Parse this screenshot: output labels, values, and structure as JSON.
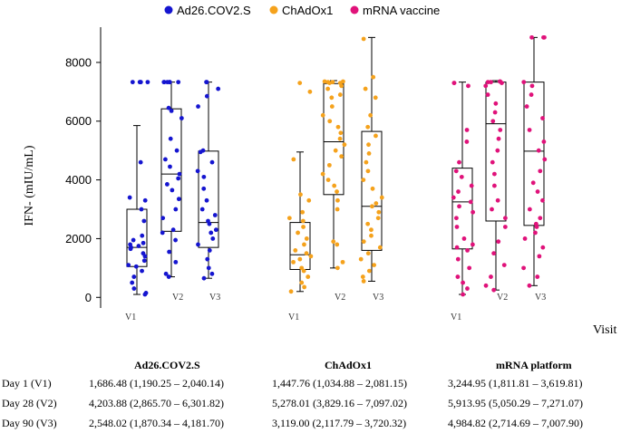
{
  "chart_data": {
    "type": "box-strip",
    "ylabel": "IFN-  (mIU/mL)",
    "xlabel": "Visit",
    "ylim": [
      -300,
      9200
    ],
    "yticks": [
      0,
      2000,
      4000,
      6000,
      8000
    ],
    "ytick_labels": [
      "0",
      "2000",
      "4000",
      "6000",
      "8000"
    ],
    "legend": [
      {
        "name": "Ad26.COV2.S",
        "color": "#1515d0"
      },
      {
        "name": "ChAdOx1",
        "color": "#f5a21c"
      },
      {
        "name": "mRNA vaccine",
        "color": "#e0127a"
      }
    ],
    "groups": [
      {
        "name": "Ad26.COV2.S",
        "color": "#1515d0",
        "boxes": [
          {
            "visit": "V1",
            "min": 100,
            "q1": 1050,
            "median": 1700,
            "q3": 3000,
            "max": 5850,
            "points": [
              7330,
              7330,
              7330,
              7330,
              7330,
              4600,
              3400,
              3300,
              3000,
              2600,
              2100,
              1950,
              1850,
              1800,
              1750,
              1700,
              1650,
              1500,
              1400,
              1250,
              1100,
              1050,
              900,
              700,
              500,
              300,
              150,
              100
            ]
          },
          {
            "visit": "V2",
            "min": 700,
            "q1": 2250,
            "median": 4200,
            "q3": 6420,
            "max": 7330,
            "points": [
              7330,
              7330,
              7330,
              7330,
              7330,
              7330,
              6450,
              6350,
              6100,
              5400,
              5000,
              4700,
              4450,
              4200,
              4050,
              3850,
              3650,
              3350,
              3000,
              2700,
              2300,
              2200,
              1950,
              1550,
              1200,
              800,
              700
            ]
          },
          {
            "visit": "V3",
            "min": 650,
            "q1": 1700,
            "median": 2550,
            "q3": 4980,
            "max": 7330,
            "points": [
              7330,
              7330,
              7100,
              6850,
              6500,
              5000,
              4950,
              4600,
              4300,
              4100,
              3700,
              3300,
              3000,
              2800,
              2600,
              2500,
              2300,
              2200,
              2000,
              1800,
              1600,
              1300,
              1000,
              800,
              650
            ]
          }
        ]
      },
      {
        "name": "ChAdOx1",
        "color": "#f5a21c",
        "boxes": [
          {
            "visit": "V1",
            "min": 200,
            "q1": 950,
            "median": 1450,
            "q3": 2550,
            "max": 4950,
            "points": [
              7300,
              7000,
              4700,
              3500,
              3300,
              2900,
              2700,
              2600,
              2400,
              2200,
              2000,
              1800,
              1600,
              1500,
              1400,
              1300,
              1200,
              1000,
              900,
              700,
              500,
              350,
              200
            ]
          },
          {
            "visit": "V2",
            "min": 1000,
            "q1": 3500,
            "median": 5300,
            "q3": 7280,
            "max": 7380,
            "points": [
              7350,
              7350,
              7330,
              7330,
              7300,
              7300,
              7200,
              7100,
              6900,
              6800,
              6500,
              6200,
              6000,
              5800,
              5600,
              5400,
              5200,
              5000,
              4800,
              4500,
              4200,
              4000,
              3800,
              3600,
              3300,
              3000,
              1900,
              1800,
              1200,
              1000
            ]
          },
          {
            "visit": "V3",
            "min": 550,
            "q1": 1600,
            "median": 3100,
            "q3": 5650,
            "max": 8850,
            "points": [
              8800,
              7500,
              7100,
              6800,
              6200,
              5800,
              5500,
              5200,
              4900,
              4600,
              4300,
              4000,
              3700,
              3400,
              3200,
              3100,
              2900,
              2700,
              2500,
              2300,
              2100,
              1900,
              1700,
              1500,
              1300,
              1100,
              900,
              700,
              550
            ]
          }
        ]
      },
      {
        "name": "mRNA vaccine",
        "color": "#e0127a",
        "boxes": [
          {
            "visit": "V1",
            "min": 100,
            "q1": 1650,
            "median": 3250,
            "q3": 4400,
            "max": 7330,
            "points": [
              7300,
              7300,
              7200,
              5700,
              5300,
              4600,
              4300,
              4100,
              3800,
              3600,
              3400,
              3250,
              3100,
              2900,
              2700,
              2400,
              2000,
              1800,
              1700,
              1600,
              1300,
              1000,
              700,
              500,
              300,
              100
            ]
          },
          {
            "visit": "V2",
            "min": 250,
            "q1": 2600,
            "median": 5910,
            "q3": 7330,
            "max": 7380,
            "points": [
              7350,
              7350,
              7330,
              7330,
              7300,
              7200,
              6900,
              6600,
              6300,
              6000,
              5700,
              5400,
              5000,
              4600,
              4200,
              3800,
              3300,
              3000,
              2700,
              2400,
              1900,
              1500,
              1100,
              700,
              400,
              250
            ]
          },
          {
            "visit": "V3",
            "min": 400,
            "q1": 2450,
            "median": 4980,
            "q3": 7330,
            "max": 8850,
            "points": [
              8850,
              8850,
              8850,
              7330,
              7200,
              6900,
              6500,
              6100,
              5700,
              5300,
              5000,
              4700,
              4300,
              3900,
              3600,
              3300,
              3000,
              2700,
              2500,
              2400,
              2200,
              2000,
              1700,
              1400,
              1000,
              700,
              400
            ]
          }
        ]
      }
    ]
  },
  "table": {
    "headers": [
      "Ad26.COV2.S",
      "ChAdOx1",
      "mRNA platform"
    ],
    "rows": [
      {
        "label": "Day 1 (V1)",
        "values": [
          "1,686.48 (1,190.25 – 2,040.14)",
          "1,447.76 (1,034.88 – 2,081.15)",
          "3,244.95 (1,811.81 – 3,619.81)"
        ]
      },
      {
        "label": "Day 28 (V2)",
        "values": [
          "4,203.88 (2,865.70 – 6,301.82)",
          "5,278.01 (3,829.16 – 7,097.02)",
          "5,913.95 (5,050.29 – 7,271.07)"
        ]
      },
      {
        "label": "Day 90 (V3)",
        "values": [
          "2,548.02 (1,870.34 – 4,181.70)",
          "3,119.00 (2,117.79 – 3,720.32)",
          "4,984.82 (2,714.69 – 7,007.90)"
        ]
      }
    ]
  }
}
